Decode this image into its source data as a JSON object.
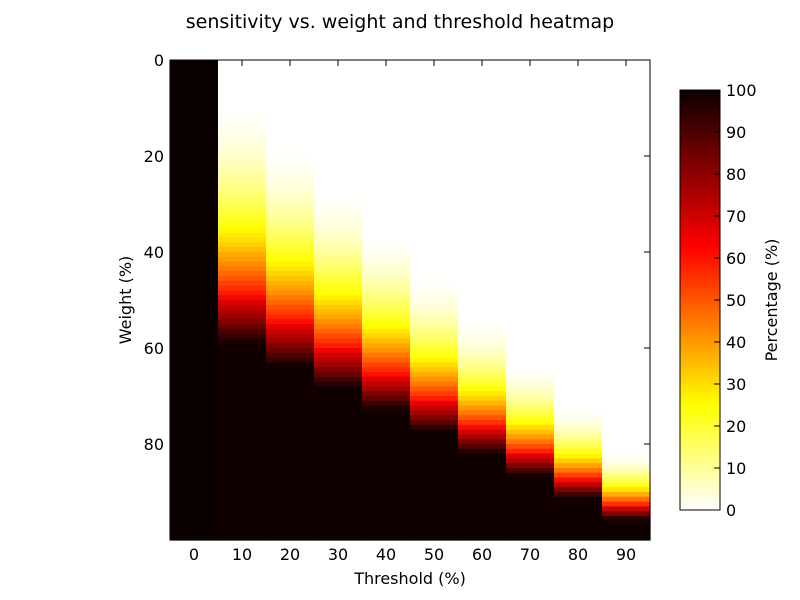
{
  "chart_data": {
    "type": "heatmap",
    "title": "sensitivity vs. weight and threshold heatmap",
    "xlabel": "Threshold (%)",
    "ylabel": "Weight (%)",
    "colorbar_label": "Percentage (%)",
    "colormap": "hot_r",
    "x_categories": [
      "0",
      "10",
      "20",
      "30",
      "40",
      "50",
      "60",
      "70",
      "80",
      "90"
    ],
    "x_thresholds": [
      0,
      10,
      20,
      30,
      40,
      50,
      60,
      70,
      80,
      90
    ],
    "y_range": [
      0,
      100
    ],
    "y_ticks": [
      0,
      20,
      40,
      60,
      80
    ],
    "y_inverted": true,
    "colorbar_range": [
      0,
      100
    ],
    "colorbar_ticks": [
      0,
      10,
      20,
      30,
      40,
      50,
      60,
      70,
      80,
      90,
      100
    ],
    "value_model": "sensitivity = 100 * P(Weight >= Threshold) per column; Weight rows 0-99",
    "notes": "Column 0 is ~100% throughout; each column transitions from white (0%) at low weights to near-black (~98%) at high weights, transition shifting toward larger weights as threshold increases"
  }
}
